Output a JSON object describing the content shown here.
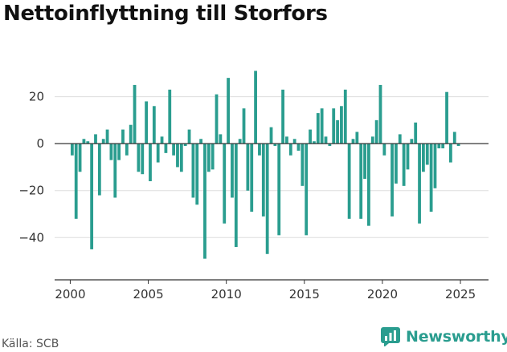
{
  "title": "Nettoinflyttning till Storfors",
  "source": "Källa: SCB",
  "brand": {
    "name": "Newsworthy",
    "color": "#2a9d8f"
  },
  "chart_data": {
    "type": "bar",
    "title": "Nettoinflyttning till Storfors",
    "xlabel": "",
    "ylabel": "",
    "bar_color": "#2a9d8f",
    "grid": true,
    "xlim": [
      1999.0,
      2026.8
    ],
    "ylim": [
      -58,
      40
    ],
    "x_ticks": [
      2000,
      2005,
      2010,
      2015,
      2020,
      2025
    ],
    "y_ticks": [
      20,
      0,
      -20,
      -40
    ],
    "x_tick_labels": [
      "2000",
      "2005",
      "2010",
      "2015",
      "2020",
      "2025"
    ],
    "y_tick_labels": [
      "20",
      "0",
      "−20",
      "−40"
    ],
    "x": [
      2000.125,
      2000.375,
      2000.625,
      2000.875,
      2001.125,
      2001.375,
      2001.625,
      2001.875,
      2002.125,
      2002.375,
      2002.625,
      2002.875,
      2003.125,
      2003.375,
      2003.625,
      2003.875,
      2004.125,
      2004.375,
      2004.625,
      2004.875,
      2005.125,
      2005.375,
      2005.625,
      2005.875,
      2006.125,
      2006.375,
      2006.625,
      2006.875,
      2007.125,
      2007.375,
      2007.625,
      2007.875,
      2008.125,
      2008.375,
      2008.625,
      2008.875,
      2009.125,
      2009.375,
      2009.625,
      2009.875,
      2010.125,
      2010.375,
      2010.625,
      2010.875,
      2011.125,
      2011.375,
      2011.625,
      2011.875,
      2012.125,
      2012.375,
      2012.625,
      2012.875,
      2013.125,
      2013.375,
      2013.625,
      2013.875,
      2014.125,
      2014.375,
      2014.625,
      2014.875,
      2015.125,
      2015.375,
      2015.625,
      2015.875,
      2016.125,
      2016.375,
      2016.625,
      2016.875,
      2017.125,
      2017.375,
      2017.625,
      2017.875,
      2018.125,
      2018.375,
      2018.625,
      2018.875,
      2019.125,
      2019.375,
      2019.625,
      2019.875,
      2020.125,
      2020.375,
      2020.625,
      2020.875,
      2021.125,
      2021.375,
      2021.625,
      2021.875,
      2022.125,
      2022.375,
      2022.625,
      2022.875,
      2023.125,
      2023.375,
      2023.625,
      2023.875,
      2024.125,
      2024.375,
      2024.625,
      2024.875,
      2025.125,
      2025.375
    ],
    "values": [
      -5,
      -32,
      -12,
      2,
      1,
      -45,
      4,
      -22,
      2,
      6,
      -7,
      -23,
      -7,
      6,
      -5,
      8,
      25,
      -12,
      -13,
      18,
      -16,
      16,
      -8,
      3,
      -4,
      23,
      -5,
      -10,
      -12,
      -1,
      6,
      -23,
      -26,
      2,
      -49,
      -12,
      -11,
      21,
      4,
      -34,
      28,
      -23,
      -44,
      2,
      15,
      -20,
      -29,
      31,
      -5,
      -31,
      -47,
      7,
      -1,
      -39,
      23,
      3,
      -5,
      2,
      -3,
      -18,
      -39,
      6,
      1,
      13,
      15,
      3,
      -1,
      15,
      10,
      16,
      23,
      -32,
      2,
      5,
      -32,
      -15,
      -35,
      3,
      10,
      25,
      -5,
      0,
      -31,
      -17,
      4,
      -18,
      -11,
      2,
      9,
      -34,
      -12,
      -9,
      -29,
      -19,
      -2,
      -2,
      22,
      -8,
      5,
      -1,
      0,
      0
    ]
  }
}
